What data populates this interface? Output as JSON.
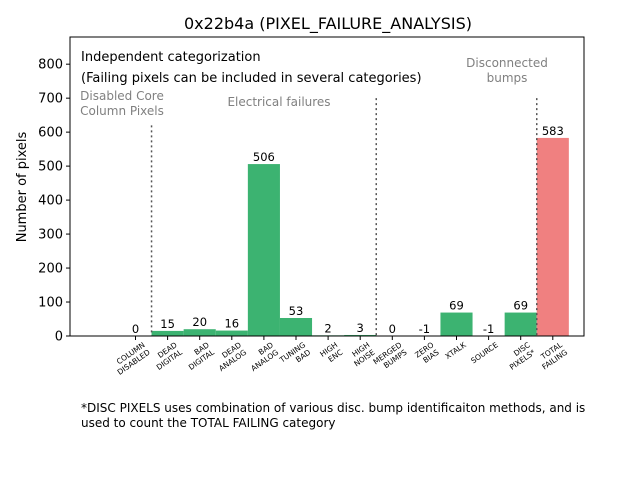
{
  "chart_data": {
    "type": "bar",
    "title": "0x22b4a (PIXEL_FAILURE_ANALYSIS)",
    "ylabel": "Number of pixels",
    "xlabel": "",
    "ylim": [
      0,
      880
    ],
    "yticks": [
      0,
      100,
      200,
      300,
      400,
      500,
      600,
      700,
      800
    ],
    "grid": false,
    "categories": [
      [
        "COLUMN",
        "DISABLED"
      ],
      [
        "DEAD",
        "DIGITAL"
      ],
      [
        "BAD",
        "DIGITAL"
      ],
      [
        "DEAD",
        "ANALOG"
      ],
      [
        "BAD",
        "ANALOG"
      ],
      [
        "TUNING",
        "BAD"
      ],
      [
        "HIGH",
        "ENC"
      ],
      [
        "HIGH",
        "NOISE"
      ],
      [
        "MERGED",
        "BUMPS"
      ],
      [
        "ZERO",
        "BIAS"
      ],
      [
        "XTALK"
      ],
      [
        "SOURCE"
      ],
      [
        "DISC",
        "PIXELS*"
      ],
      [
        "TOTAL",
        "FAILING"
      ]
    ],
    "values": [
      0,
      15,
      20,
      16,
      506,
      53,
      2,
      3,
      0,
      -1,
      69,
      -1,
      69,
      583
    ],
    "value_labels": [
      "0",
      "15",
      "20",
      "16",
      "506",
      "53",
      "2",
      "3",
      "0",
      "-1",
      "69",
      "-1",
      "69",
      "583"
    ],
    "bar_colors": [
      "#3cb371",
      "#3cb371",
      "#3cb371",
      "#3cb371",
      "#3cb371",
      "#3cb371",
      "#3cb371",
      "#3cb371",
      "#3cb371",
      "#3cb371",
      "#3cb371",
      "#3cb371",
      "#3cb371",
      "#f08080"
    ],
    "separators_after_index": [
      0,
      7,
      12
    ],
    "annotations": {
      "header_line1": "Independent categorization",
      "header_line2": "(Failing pixels can be included in several categories)",
      "group_disabled": [
        "Disabled Core",
        "Column Pixels"
      ],
      "group_electrical": [
        "Electrical failures"
      ],
      "group_disconnected": [
        "Disconnected",
        "bumps"
      ]
    }
  },
  "footnote": {
    "line1": "*DISC PIXELS uses combination of various disc. bump identificaiton methods, and is",
    "line2": "used to count the TOTAL FAILING category"
  },
  "colors": {
    "bar": "#3cb371",
    "total_bar": "#f08080",
    "separator": "#555555",
    "annotation_text": "#808080"
  }
}
